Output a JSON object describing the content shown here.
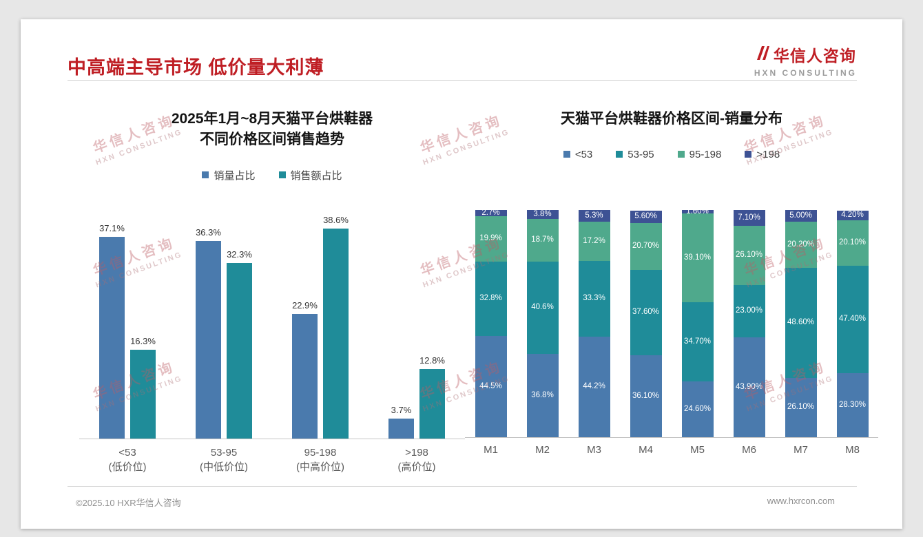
{
  "slide": {
    "title": "中高端主导市场 低价量大利薄",
    "logo": {
      "cn": "华信人咨询",
      "en": "HXN CONSULTING"
    },
    "watermark": {
      "cn": "华信人咨询",
      "en": "HXN CONSULTING"
    },
    "footer": {
      "left": "©2025.10 HXR华信人咨询",
      "right": "www.hxrcon.com"
    },
    "colors": {
      "title_red": "#bf1e24",
      "blue": "#4a7aad",
      "teal": "#1f8c99",
      "green": "#4fa98c",
      "navy": "#3d5294"
    }
  },
  "chart_data": [
    {
      "type": "bar",
      "stacked": false,
      "title_lines": [
        "2025年1月~8月天猫平台烘鞋器",
        "不同价格区间销售趋势"
      ],
      "categories": [
        [
          "<53",
          "(低价位)"
        ],
        [
          "53-95",
          "(中低价位)"
        ],
        [
          "95-198",
          "(中高价位)"
        ],
        [
          ">198",
          "(高价位)"
        ]
      ],
      "series": [
        {
          "name": "销量占比",
          "color": "#4a7aad",
          "values": [
            37.1,
            36.3,
            22.9,
            3.7
          ],
          "labels": [
            "37.1%",
            "36.3%",
            "22.9%",
            "3.7%"
          ]
        },
        {
          "name": "销售额占比",
          "color": "#1f8c99",
          "values": [
            16.3,
            32.3,
            38.6,
            12.8
          ],
          "labels": [
            "16.3%",
            "32.3%",
            "38.6%",
            "12.8%"
          ]
        }
      ],
      "ylim": [
        0,
        40
      ],
      "grid": false,
      "legend_position": "top"
    },
    {
      "type": "bar",
      "stacked": true,
      "title": "天猫平台烘鞋器价格区间-销量分布",
      "categories": [
        "M1",
        "M2",
        "M3",
        "M4",
        "M5",
        "M6",
        "M7",
        "M8"
      ],
      "series": [
        {
          "name": "<53",
          "color": "#4a7aad",
          "values": [
            44.5,
            36.8,
            44.2,
            36.1,
            24.6,
            43.9,
            26.1,
            28.3
          ],
          "labels": [
            "44.5%",
            "36.8%",
            "44.2%",
            "36.10%",
            "24.60%",
            "43.90%",
            "26.10%",
            "28.30%"
          ]
        },
        {
          "name": "53-95",
          "color": "#1f8c99",
          "values": [
            32.8,
            40.6,
            33.3,
            37.6,
            34.7,
            23.0,
            48.6,
            47.4
          ],
          "labels": [
            "32.8%",
            "40.6%",
            "33.3%",
            "37.60%",
            "34.70%",
            "23.00%",
            "48.60%",
            "47.40%"
          ]
        },
        {
          "name": "95-198",
          "color": "#4fa98c",
          "values": [
            19.9,
            18.7,
            17.2,
            20.7,
            39.1,
            26.1,
            20.2,
            20.1
          ],
          "labels": [
            "19.9%",
            "18.7%",
            "17.2%",
            "20.70%",
            "39.10%",
            "26.10%",
            "20.20%",
            "20.10%"
          ]
        },
        {
          "name": ">198",
          "color": "#3d5294",
          "values": [
            2.7,
            3.8,
            5.3,
            5.6,
            1.6,
            7.1,
            5.0,
            4.2
          ],
          "labels": [
            "2.7%",
            "3.8%",
            "5.3%",
            "5.60%",
            "1.60%",
            "7.10%",
            "5.00%",
            "4.20%"
          ]
        }
      ],
      "ylim": [
        0,
        100
      ],
      "grid": false,
      "legend_position": "top"
    }
  ]
}
